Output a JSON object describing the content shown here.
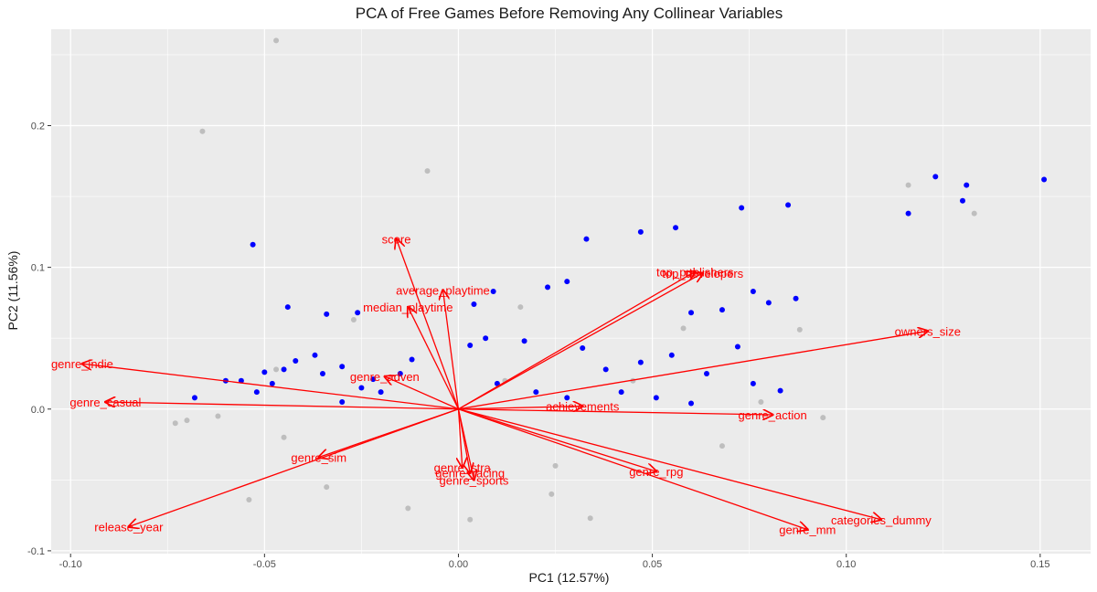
{
  "chart_data": {
    "type": "scatter",
    "title": "PCA of Free Games Before Removing Any Collinear Variables",
    "xlabel": "PC1 (12.57%)",
    "ylabel": "PC2 (11.56%)",
    "xlim": [
      -0.105,
      0.163
    ],
    "ylim": [
      -0.102,
      0.268
    ],
    "x_ticks": [
      -0.1,
      -0.05,
      0.0,
      0.05,
      0.1,
      0.15
    ],
    "x_tick_labels": [
      "-0.10",
      "-0.05",
      "0.00",
      "0.05",
      "0.10",
      "0.15"
    ],
    "y_ticks": [
      -0.1,
      0.0,
      0.1,
      0.2
    ],
    "y_tick_labels": [
      "-0.1",
      "0.0",
      "0.1",
      "0.2"
    ],
    "grid": true,
    "colors": {
      "panel": "#ebebeb",
      "grid": "#ffffff",
      "grey_points": "#bebebe",
      "blue_points": "#0000ff",
      "loadings": "#ff0000"
    },
    "series": [
      {
        "color": "#bebebe",
        "points": [
          [
            -0.047,
            0.26
          ],
          [
            -0.066,
            0.196
          ],
          [
            -0.008,
            0.168
          ],
          [
            -0.027,
            0.063
          ],
          [
            0.116,
            0.158
          ],
          [
            0.133,
            0.138
          ],
          [
            0.088,
            0.056
          ],
          [
            0.016,
            0.072
          ],
          [
            -0.047,
            0.028
          ],
          [
            -0.07,
            -0.008
          ],
          [
            -0.073,
            -0.01
          ],
          [
            -0.054,
            -0.064
          ],
          [
            0.003,
            -0.078
          ],
          [
            -0.013,
            -0.07
          ],
          [
            0.024,
            -0.06
          ],
          [
            0.034,
            -0.077
          ],
          [
            0.068,
            -0.026
          ],
          [
            0.078,
            0.005
          ],
          [
            0.094,
            -0.006
          ],
          [
            -0.034,
            -0.055
          ],
          [
            0.058,
            0.057
          ],
          [
            0.045,
            0.02
          ],
          [
            0.025,
            -0.04
          ],
          [
            -0.045,
            -0.02
          ],
          [
            -0.062,
            -0.005
          ],
          [
            0.012,
            0.02
          ]
        ]
      },
      {
        "color": "#0000ff",
        "points": [
          [
            0.151,
            0.162
          ],
          [
            0.123,
            0.164
          ],
          [
            0.131,
            0.158
          ],
          [
            0.13,
            0.147
          ],
          [
            0.116,
            0.138
          ],
          [
            0.085,
            0.144
          ],
          [
            0.073,
            0.142
          ],
          [
            0.056,
            0.128
          ],
          [
            0.047,
            0.125
          ],
          [
            0.033,
            0.12
          ],
          [
            -0.053,
            0.116
          ],
          [
            0.076,
            0.083
          ],
          [
            0.087,
            0.078
          ],
          [
            0.08,
            0.075
          ],
          [
            0.068,
            0.07
          ],
          [
            0.06,
            0.068
          ],
          [
            0.028,
            0.09
          ],
          [
            0.023,
            0.086
          ],
          [
            -0.044,
            0.072
          ],
          [
            0.009,
            0.083
          ],
          [
            0.004,
            0.074
          ],
          [
            -0.034,
            0.067
          ],
          [
            -0.026,
            0.068
          ],
          [
            -0.056,
            0.02
          ],
          [
            -0.06,
            0.02
          ],
          [
            -0.068,
            0.008
          ],
          [
            -0.042,
            0.034
          ],
          [
            -0.037,
            0.038
          ],
          [
            -0.05,
            0.026
          ],
          [
            0.017,
            0.048
          ],
          [
            0.032,
            0.043
          ],
          [
            -0.03,
            0.03
          ],
          [
            -0.022,
            0.021
          ],
          [
            -0.035,
            0.025
          ],
          [
            -0.012,
            0.035
          ],
          [
            -0.045,
            0.028
          ],
          [
            -0.02,
            0.012
          ],
          [
            -0.025,
            0.015
          ],
          [
            0.007,
            0.05
          ],
          [
            0.072,
            0.044
          ],
          [
            0.055,
            0.038
          ],
          [
            0.047,
            0.033
          ],
          [
            0.038,
            0.028
          ],
          [
            0.064,
            0.025
          ],
          [
            0.083,
            0.013
          ],
          [
            0.076,
            0.018
          ],
          [
            -0.048,
            0.018
          ],
          [
            -0.052,
            0.012
          ],
          [
            -0.03,
            0.005
          ],
          [
            0.01,
            0.018
          ],
          [
            0.003,
            0.045
          ],
          [
            -0.015,
            0.025
          ],
          [
            0.02,
            0.012
          ],
          [
            0.028,
            0.008
          ],
          [
            0.042,
            0.012
          ],
          [
            0.051,
            0.008
          ],
          [
            0.06,
            0.004
          ]
        ]
      }
    ],
    "loadings": [
      {
        "label": "score",
        "x": -0.016,
        "y": 0.12
      },
      {
        "label": "average_playtime",
        "x": -0.004,
        "y": 0.084
      },
      {
        "label": "median_playtime",
        "x": -0.013,
        "y": 0.072
      },
      {
        "label": "top_publishers",
        "x": 0.061,
        "y": 0.097
      },
      {
        "label": "top_developers",
        "x": 0.063,
        "y": 0.096
      },
      {
        "label": "owners_size",
        "x": 0.121,
        "y": 0.055
      },
      {
        "label": "genre_indie",
        "x": -0.097,
        "y": 0.032
      },
      {
        "label": "genre_casual",
        "x": -0.091,
        "y": 0.005
      },
      {
        "label": "genre_adven",
        "x": -0.019,
        "y": 0.023
      },
      {
        "label": "achievements",
        "x": 0.032,
        "y": 0.002
      },
      {
        "label": "genre_action",
        "x": 0.081,
        "y": -0.004
      },
      {
        "label": "genre_sim",
        "x": -0.036,
        "y": -0.034
      },
      {
        "label": "genre_stra",
        "x": 0.001,
        "y": -0.041
      },
      {
        "label": "genre_racing",
        "x": 0.003,
        "y": -0.045
      },
      {
        "label": "genre_sports",
        "x": 0.004,
        "y": -0.05
      },
      {
        "label": "genre_rpg",
        "x": 0.051,
        "y": -0.044
      },
      {
        "label": "genre_mm",
        "x": 0.09,
        "y": -0.085
      },
      {
        "label": "categories_dummy",
        "x": 0.109,
        "y": -0.078
      },
      {
        "label": "release_year",
        "x": -0.085,
        "y": -0.083
      }
    ]
  }
}
